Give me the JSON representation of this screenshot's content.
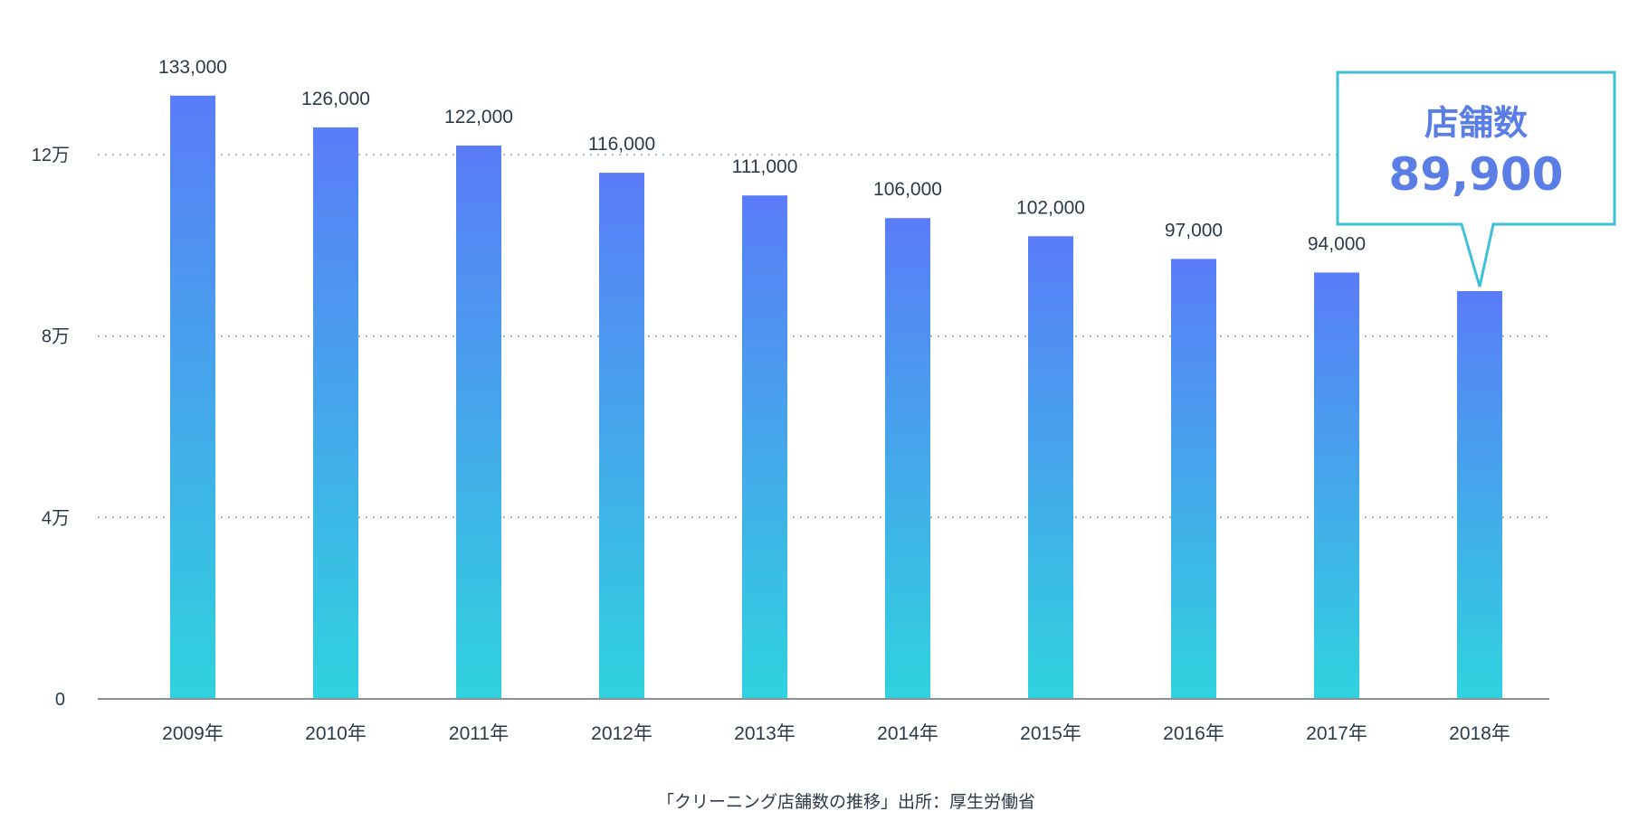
{
  "chart_data": {
    "type": "bar",
    "categories": [
      "2009年",
      "2010年",
      "2011年",
      "2012年",
      "2013年",
      "2014年",
      "2015年",
      "2016年",
      "2017年",
      "2018年"
    ],
    "values": [
      133000,
      126000,
      122000,
      116000,
      111000,
      106000,
      102000,
      97000,
      94000,
      89900
    ],
    "data_labels": [
      "133,000",
      "126,000",
      "122,000",
      "116,000",
      "111,000",
      "106,000",
      "102,000",
      "97,000",
      "94,000",
      ""
    ],
    "ylim": [
      0,
      120000
    ],
    "yticks": [
      {
        "value": 0,
        "label": "0"
      },
      {
        "value": 40000,
        "label": "4万"
      },
      {
        "value": 80000,
        "label": "8万"
      },
      {
        "value": 120000,
        "label": "12万"
      }
    ],
    "grid": true,
    "title": "",
    "xlabel": "",
    "ylabel": "",
    "bar_gradient": {
      "top": "#5a7cf8",
      "bottom": "#2fd3de"
    },
    "annotation": {
      "category": "2018年",
      "title": "店舗数",
      "value": "89,900",
      "border_color": "#3ec1d6",
      "text_color": "#5b7ee6"
    },
    "source": "「クリーニング店舗数の推移」出所：厚生労働省"
  }
}
